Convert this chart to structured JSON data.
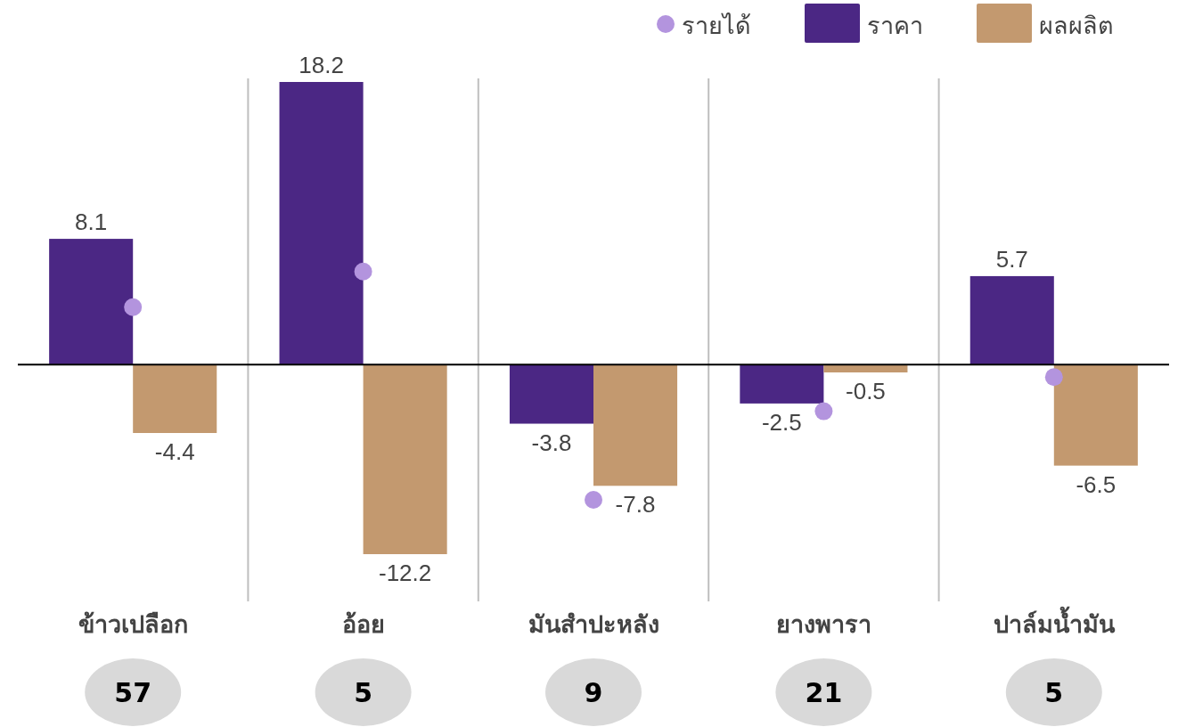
{
  "chart_data": {
    "type": "bar",
    "categories": [
      "ข้าวเปลือก",
      "อ้อย",
      "มันสำปะหลัง",
      "ยางพารา",
      "ปาล์มน้ำมัน"
    ],
    "series": [
      {
        "name": "รายได้",
        "type": "scatter",
        "color": "#b394de",
        "values": [
          3.7,
          6.0,
          -8.7,
          -3.0,
          -0.8
        ]
      },
      {
        "name": "ราคา",
        "color": "#4b2784",
        "values": [
          8.1,
          18.2,
          -3.8,
          -2.5,
          5.7
        ],
        "value_labels": [
          "8.1",
          "18.2",
          "-3.8",
          "-2.5",
          "5.7"
        ]
      },
      {
        "name": "ผลผลิต",
        "color": "#c3996f",
        "values": [
          -4.4,
          -12.2,
          -7.8,
          -0.5,
          -6.5
        ],
        "value_labels": [
          "-4.4",
          "-12.2",
          "-7.8",
          "-0.5",
          "-6.5"
        ]
      }
    ],
    "tick_labels": "x",
    "grid": "x",
    "legend": "top right",
    "marker": "circle",
    "annotations": [
      "57",
      "5",
      "9",
      "21",
      "5"
    ]
  }
}
